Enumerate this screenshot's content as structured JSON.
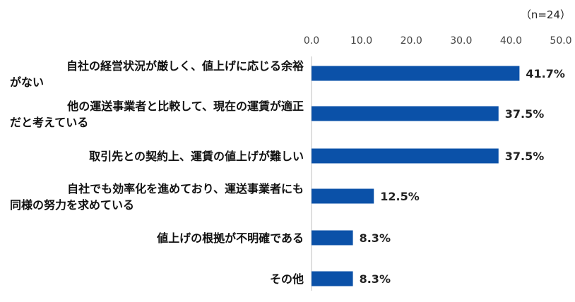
{
  "note": "（n=24）",
  "chart_data": {
    "type": "bar",
    "orientation": "horizontal",
    "categories": [
      [
        "自社の経営状況が厳しく、値上げに応じる余裕",
        "がない"
      ],
      [
        "他の運送事業者と比較して、現在の運賃が適正",
        "だと考えている"
      ],
      [
        "取引先との契約上、運賃の値上げが難しい"
      ],
      [
        "自社でも効率化を進めており、運送事業者にも",
        "同様の努力を求めている"
      ],
      [
        "値上げの根拠が不明確である"
      ],
      [
        "その他"
      ]
    ],
    "values": [
      41.7,
      37.5,
      37.5,
      12.5,
      8.3,
      8.3
    ],
    "value_labels": [
      "41.7%",
      "37.5%",
      "37.5%",
      "12.5%",
      "8.3%",
      "8.3%"
    ],
    "x_ticks": [
      "0.0",
      "10.0",
      "20.0",
      "30.0",
      "40.0",
      "50.0"
    ],
    "xlim": [
      0,
      50
    ],
    "axis_position": "top",
    "grid": false,
    "colors": {
      "bar": "#0B51A8"
    }
  }
}
